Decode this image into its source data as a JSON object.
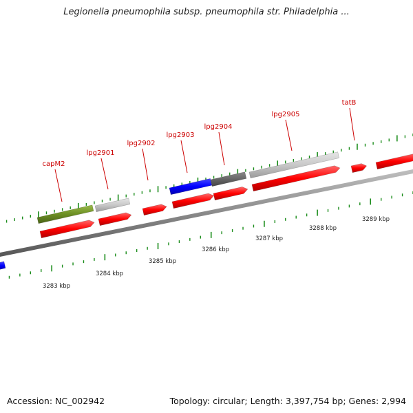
{
  "title": "Legionella pneumophila subsp. pneumophila str. Philadelphia ...",
  "footer": {
    "accession": "Accession: NC_002942",
    "details": "Topology: circular; Length: 3,397,754 bp; Genes: 2,994"
  },
  "gene_labels": [
    "capM2",
    "lpg2901",
    "lpg2902",
    "lpg2903",
    "lpg2904",
    "lpg2905",
    "tatB"
  ],
  "kbp_labels": [
    "3283 kbp",
    "3284 kbp",
    "3285 kbp",
    "3286 kbp",
    "3287 kbp",
    "3288 kbp",
    "3289 kbp"
  ],
  "colors": {
    "cds": "#ff0000",
    "olive_feature": "#6b8e23",
    "blue_feature": "#0000ff",
    "light_gray_feature": "#c8c8c8",
    "dark_gray_feature": "#666666",
    "backbone": "#808080",
    "ticks": "#1a8c1a",
    "gene_label": "#cc0000"
  }
}
